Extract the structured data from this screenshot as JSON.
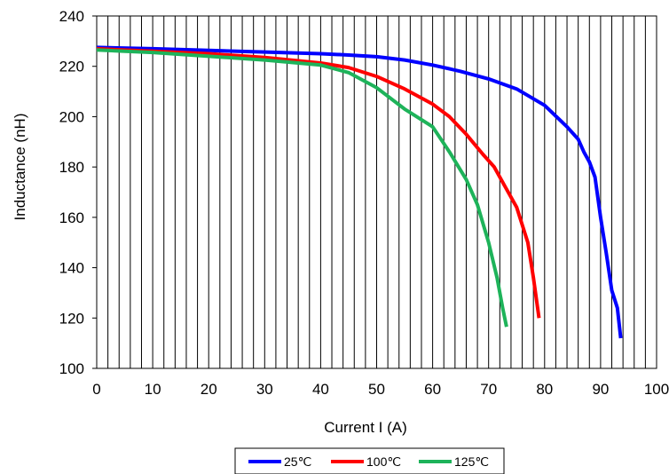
{
  "chart_data": {
    "type": "line",
    "title": "",
    "xlabel": "Current I (A)",
    "ylabel": "Inductance (nH)",
    "xlim": [
      0,
      100
    ],
    "ylim": [
      100,
      240
    ],
    "x_ticks": [
      0,
      10,
      20,
      30,
      40,
      50,
      60,
      70,
      80,
      90,
      100
    ],
    "y_ticks": [
      100,
      120,
      140,
      160,
      180,
      200,
      220,
      240
    ],
    "x_tick_labels": [
      "0",
      "10",
      "20",
      "30",
      "40",
      "50",
      "60",
      "70",
      "80",
      "90",
      "100"
    ],
    "y_tick_labels": [
      "100",
      "120",
      "140",
      "160",
      "180",
      "200",
      "220",
      "240"
    ],
    "grid": {
      "vertical": true,
      "vertical_step": 2,
      "horizontal": false
    },
    "legend": {
      "position": "bottom"
    },
    "series": [
      {
        "name": "25℃",
        "color": "#0000ff",
        "points": [
          [
            0,
            227.5
          ],
          [
            10,
            227
          ],
          [
            20,
            226.3
          ],
          [
            30,
            225.7
          ],
          [
            40,
            225
          ],
          [
            45,
            224.5
          ],
          [
            50,
            223.8
          ],
          [
            55,
            222.5
          ],
          [
            60,
            220.5
          ],
          [
            65,
            218
          ],
          [
            70,
            215
          ],
          [
            75,
            211
          ],
          [
            80,
            204.5
          ],
          [
            84,
            196
          ],
          [
            86,
            191
          ],
          [
            87,
            186
          ],
          [
            88,
            182
          ],
          [
            89,
            176
          ],
          [
            90,
            160
          ],
          [
            91,
            146
          ],
          [
            92,
            131
          ],
          [
            93,
            124
          ],
          [
            93.6,
            112
          ]
        ]
      },
      {
        "name": "100℃",
        "color": "#ff0000",
        "points": [
          [
            0,
            227
          ],
          [
            10,
            226
          ],
          [
            20,
            225
          ],
          [
            30,
            223.5
          ],
          [
            40,
            221.3
          ],
          [
            45,
            219.5
          ],
          [
            50,
            216
          ],
          [
            55,
            211
          ],
          [
            60,
            205
          ],
          [
            63,
            200
          ],
          [
            66,
            193
          ],
          [
            69,
            185
          ],
          [
            71,
            180
          ],
          [
            73,
            172
          ],
          [
            75,
            164
          ],
          [
            77,
            150
          ],
          [
            78,
            136
          ],
          [
            79,
            120
          ]
        ]
      },
      {
        "name": "125℃",
        "color": "#1eb35a",
        "points": [
          [
            0,
            226.5
          ],
          [
            10,
            225.5
          ],
          [
            20,
            224
          ],
          [
            30,
            222.5
          ],
          [
            40,
            220.5
          ],
          [
            45,
            217.5
          ],
          [
            50,
            211.5
          ],
          [
            55,
            203
          ],
          [
            60,
            196
          ],
          [
            63,
            186
          ],
          [
            66,
            175
          ],
          [
            68,
            165
          ],
          [
            70,
            150
          ],
          [
            71.5,
            136
          ],
          [
            72.5,
            124
          ],
          [
            73.2,
            116.5
          ]
        ]
      }
    ]
  }
}
